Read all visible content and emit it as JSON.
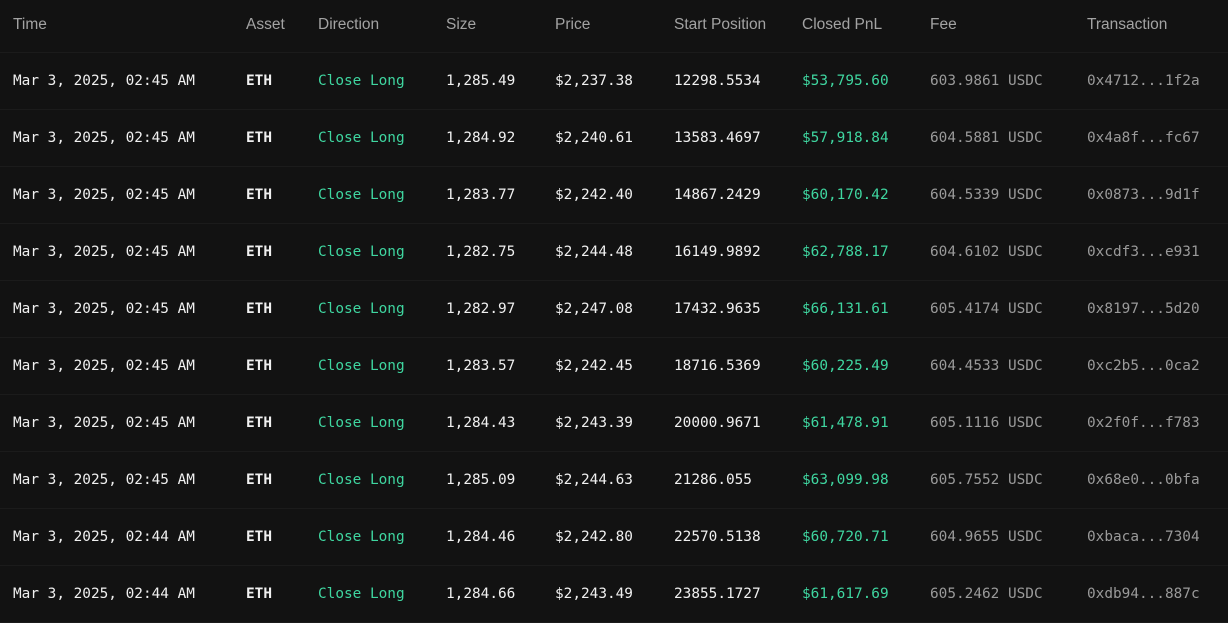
{
  "table": {
    "headers": [
      "Time",
      "Asset",
      "Direction",
      "Size",
      "Price",
      "Start Position",
      "Closed PnL",
      "Fee",
      "Transaction"
    ],
    "colors": {
      "positive": "#3fd6a0",
      "muted": "#9a9a9a",
      "text": "#f0f0f0",
      "background": "#121212"
    },
    "rows": [
      {
        "time": "Mar 3, 2025, 02:45 AM",
        "asset": "ETH",
        "direction": "Close Long",
        "size": "1,285.49",
        "price": "$2,237.38",
        "start_position": "12298.5534",
        "closed_pnl": "$53,795.60",
        "fee": "603.9861 USDC",
        "transaction": "0x4712...1f2a"
      },
      {
        "time": "Mar 3, 2025, 02:45 AM",
        "asset": "ETH",
        "direction": "Close Long",
        "size": "1,284.92",
        "price": "$2,240.61",
        "start_position": "13583.4697",
        "closed_pnl": "$57,918.84",
        "fee": "604.5881 USDC",
        "transaction": "0x4a8f...fc67"
      },
      {
        "time": "Mar 3, 2025, 02:45 AM",
        "asset": "ETH",
        "direction": "Close Long",
        "size": "1,283.77",
        "price": "$2,242.40",
        "start_position": "14867.2429",
        "closed_pnl": "$60,170.42",
        "fee": "604.5339 USDC",
        "transaction": "0x0873...9d1f"
      },
      {
        "time": "Mar 3, 2025, 02:45 AM",
        "asset": "ETH",
        "direction": "Close Long",
        "size": "1,282.75",
        "price": "$2,244.48",
        "start_position": "16149.9892",
        "closed_pnl": "$62,788.17",
        "fee": "604.6102 USDC",
        "transaction": "0xcdf3...e931"
      },
      {
        "time": "Mar 3, 2025, 02:45 AM",
        "asset": "ETH",
        "direction": "Close Long",
        "size": "1,282.97",
        "price": "$2,247.08",
        "start_position": "17432.9635",
        "closed_pnl": "$66,131.61",
        "fee": "605.4174 USDC",
        "transaction": "0x8197...5d20"
      },
      {
        "time": "Mar 3, 2025, 02:45 AM",
        "asset": "ETH",
        "direction": "Close Long",
        "size": "1,283.57",
        "price": "$2,242.45",
        "start_position": "18716.5369",
        "closed_pnl": "$60,225.49",
        "fee": "604.4533 USDC",
        "transaction": "0xc2b5...0ca2"
      },
      {
        "time": "Mar 3, 2025, 02:45 AM",
        "asset": "ETH",
        "direction": "Close Long",
        "size": "1,284.43",
        "price": "$2,243.39",
        "start_position": "20000.9671",
        "closed_pnl": "$61,478.91",
        "fee": "605.1116 USDC",
        "transaction": "0x2f0f...f783"
      },
      {
        "time": "Mar 3, 2025, 02:45 AM",
        "asset": "ETH",
        "direction": "Close Long",
        "size": "1,285.09",
        "price": "$2,244.63",
        "start_position": "21286.055",
        "closed_pnl": "$63,099.98",
        "fee": "605.7552 USDC",
        "transaction": "0x68e0...0bfa"
      },
      {
        "time": "Mar 3, 2025, 02:44 AM",
        "asset": "ETH",
        "direction": "Close Long",
        "size": "1,284.46",
        "price": "$2,242.80",
        "start_position": "22570.5138",
        "closed_pnl": "$60,720.71",
        "fee": "604.9655 USDC",
        "transaction": "0xbaca...7304"
      },
      {
        "time": "Mar 3, 2025, 02:44 AM",
        "asset": "ETH",
        "direction": "Close Long",
        "size": "1,284.66",
        "price": "$2,243.49",
        "start_position": "23855.1727",
        "closed_pnl": "$61,617.69",
        "fee": "605.2462 USDC",
        "transaction": "0xdb94...887c"
      }
    ]
  }
}
